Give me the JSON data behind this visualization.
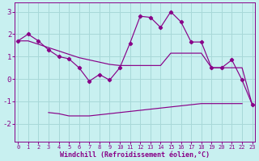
{
  "xlabel": "Windchill (Refroidissement éolien,°C)",
  "background_color": "#c8f0f0",
  "grid_color": "#a8d8d8",
  "line_color": "#880088",
  "hours": [
    0,
    1,
    2,
    3,
    4,
    5,
    6,
    7,
    8,
    9,
    10,
    11,
    12,
    13,
    14,
    15,
    16,
    17,
    18,
    19,
    20,
    21,
    22,
    23
  ],
  "windchill": [
    1.7,
    2.0,
    1.7,
    1.3,
    1.0,
    0.9,
    0.5,
    -0.1,
    0.2,
    -0.05,
    0.5,
    1.6,
    2.8,
    2.75,
    2.3,
    3.0,
    2.55,
    1.65,
    1.65,
    0.5,
    0.5,
    0.85,
    -0.05,
    -1.15
  ],
  "upper_line": [
    1.7,
    1.7,
    1.55,
    1.4,
    1.25,
    1.1,
    0.95,
    0.85,
    0.75,
    0.65,
    0.6,
    0.6,
    0.6,
    0.6,
    0.6,
    1.15,
    1.15,
    1.15,
    1.15,
    0.5,
    0.5,
    0.5,
    0.5,
    -1.15
  ],
  "lower_line": [
    null,
    null,
    null,
    -1.5,
    -1.55,
    -1.65,
    -1.65,
    -1.65,
    -1.6,
    -1.55,
    -1.5,
    -1.45,
    -1.4,
    -1.35,
    -1.3,
    -1.25,
    -1.2,
    -1.15,
    -1.1,
    -1.1,
    -1.1,
    -1.1,
    -1.1,
    null
  ],
  "ylim": [
    -2.8,
    3.4
  ],
  "yticks": [
    -2,
    -1,
    0,
    1,
    2,
    3
  ],
  "xlim": [
    -0.3,
    23.3
  ]
}
